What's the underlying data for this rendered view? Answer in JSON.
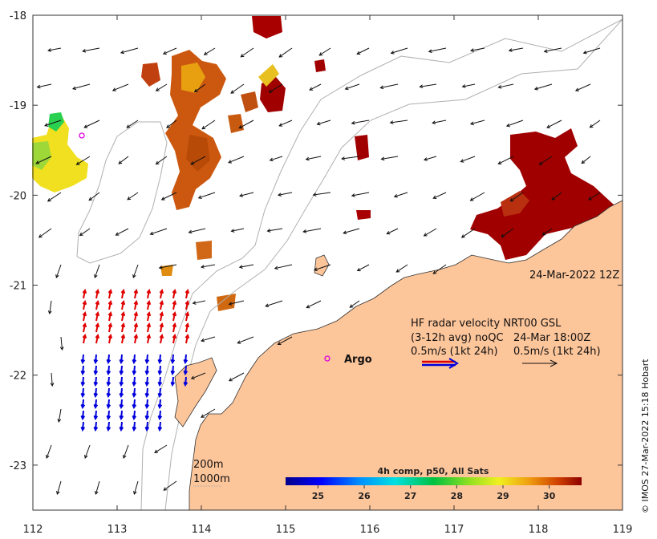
{
  "map": {
    "x_axis_ticks": [
      "112",
      "113",
      "114",
      "115",
      "116",
      "117",
      "118",
      "119"
    ],
    "y_axis_ticks": [
      "-18",
      "-19",
      "-20",
      "-21",
      "-22",
      "-23"
    ],
    "lon_range": [
      112,
      119
    ],
    "lat_range": [
      -23.5,
      -18
    ]
  },
  "annotations": {
    "timestamp": "24-Mar-2022 12Z",
    "radar_title": "HF radar velocity  NRT00 GSL",
    "radar_avg": "(3-12h avg) noQC",
    "radar_time": "24-Mar 18:00Z",
    "scale_left": "0.5m/s (1kt 24h)",
    "scale_right": "0.5m/s (1kt 24h)",
    "argo_label": "Argo",
    "iso_200": "200m",
    "iso_1000": "1000m"
  },
  "colorbar": {
    "title": "4h comp, p50, All Sats",
    "ticks": [
      "25",
      "26",
      "27",
      "28",
      "29",
      "30"
    ],
    "range": [
      24.3,
      30.7
    ]
  },
  "copyright": "© IMOS 27-Mar-2022 15:18 Hobart",
  "colors": {
    "land": "#fdc59a",
    "current_vector": "#111111",
    "radar_red": "#e00000",
    "radar_blue": "#0000dd",
    "argo_marker": "#e000e0",
    "isobath": "#b0b0b0"
  }
}
